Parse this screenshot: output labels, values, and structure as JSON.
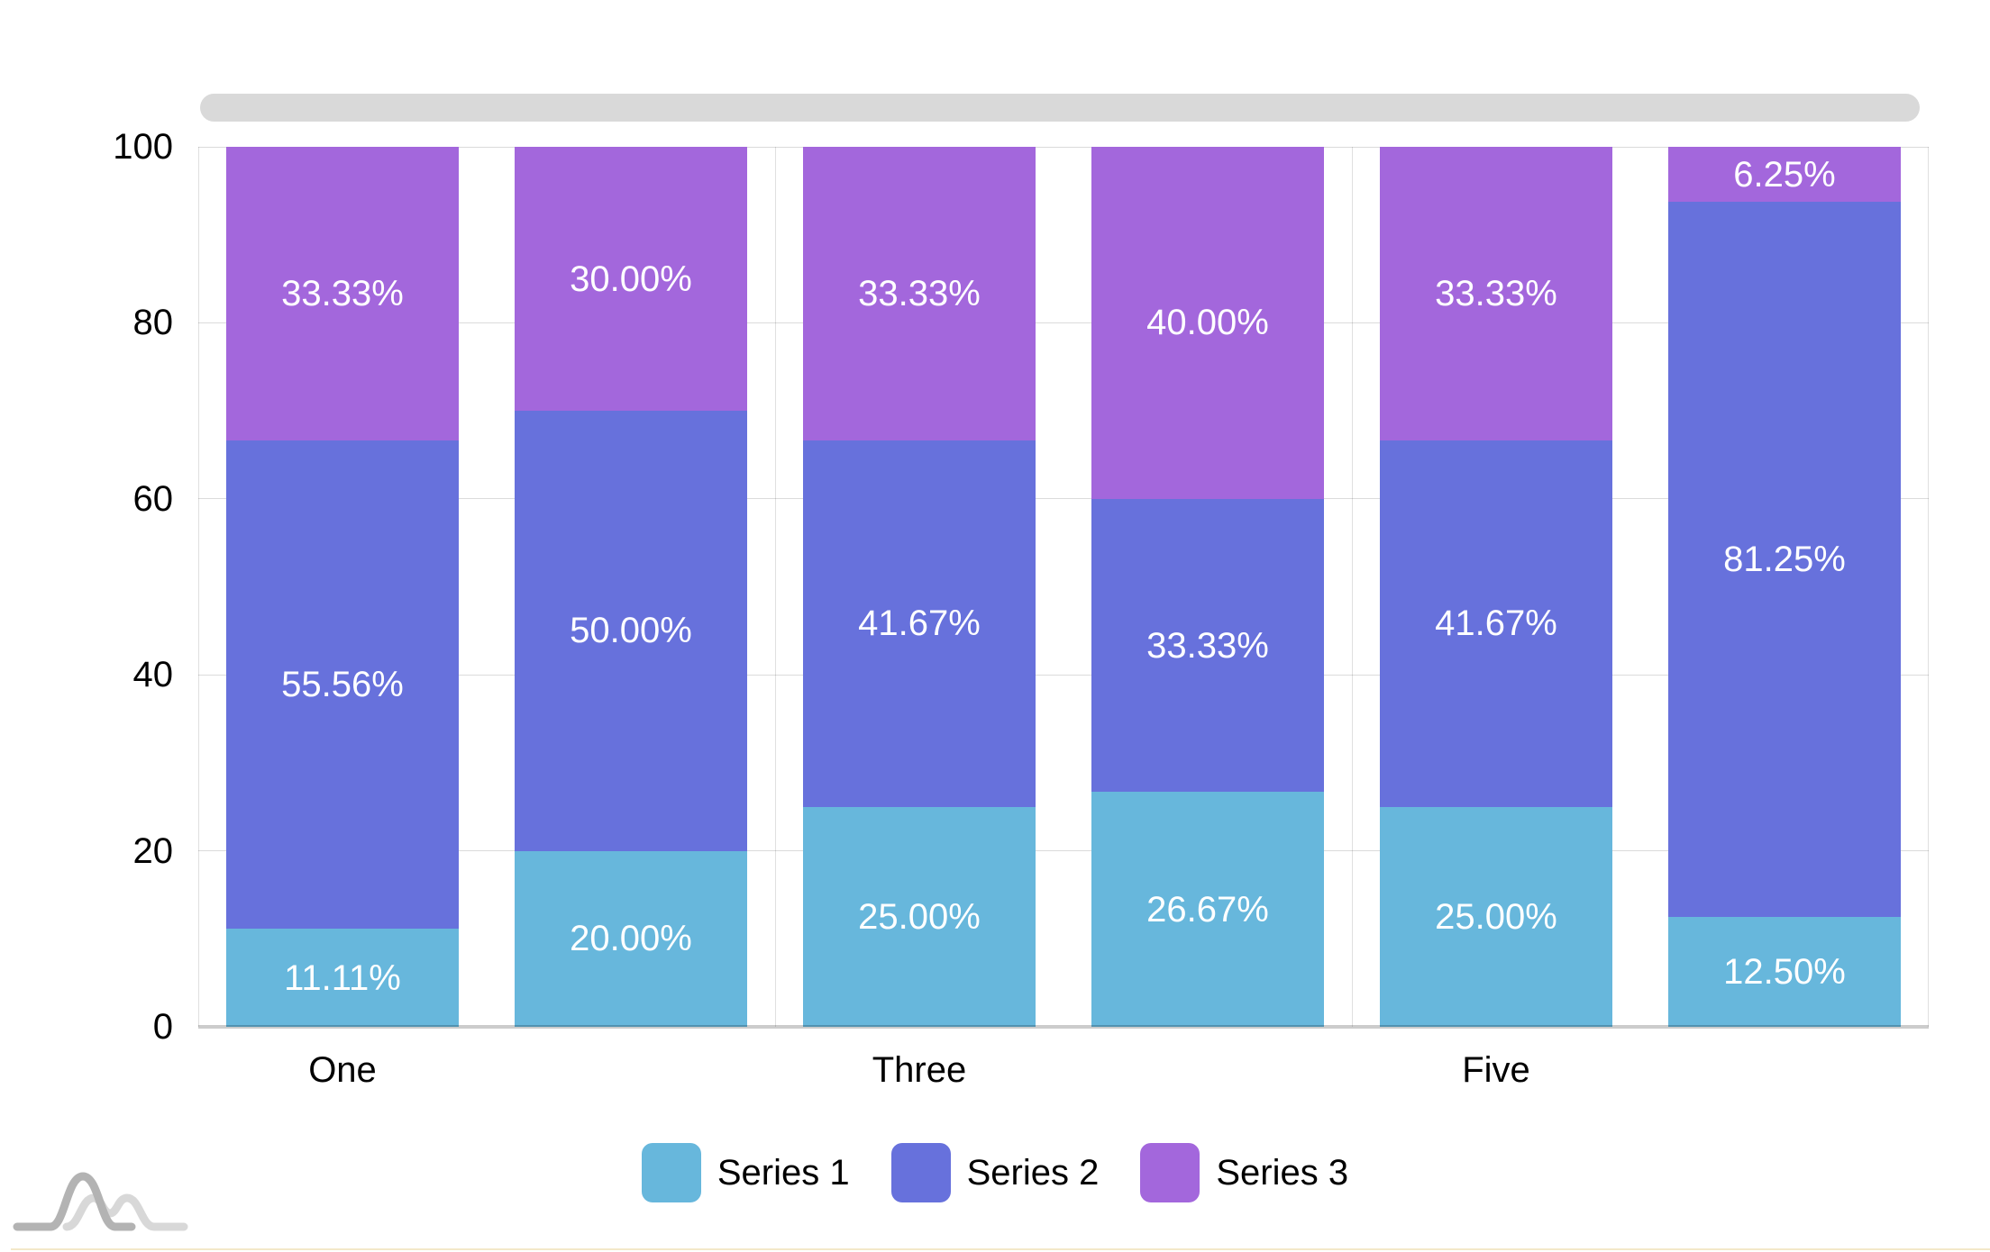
{
  "chart_data": {
    "type": "bar",
    "subtype": "stacked-100-percent-column",
    "title": "",
    "xlabel": "",
    "ylabel": "",
    "grid": true,
    "y_axis": {
      "min": 0,
      "max": 100,
      "ticks": [
        "0",
        "20",
        "40",
        "60",
        "80",
        "100"
      ]
    },
    "x_axis": {
      "visible_tick_labels": [
        {
          "text": "One",
          "bar_index": 0
        },
        {
          "text": "Three",
          "bar_index": 2
        },
        {
          "text": "Five",
          "bar_index": 4
        }
      ]
    },
    "series": [
      {
        "name": "Series 1",
        "color": "#67b7dc",
        "values": [
          11.11,
          20.0,
          25.0,
          26.67,
          25.0,
          12.5
        ],
        "labels": [
          "11.11%",
          "20.00%",
          "25.00%",
          "26.67%",
          "25.00%",
          "12.50%"
        ]
      },
      {
        "name": "Series 2",
        "color": "#6771dc",
        "values": [
          55.56,
          50.0,
          41.67,
          33.33,
          41.67,
          81.25
        ],
        "labels": [
          "55.56%",
          "50.00%",
          "41.67%",
          "33.33%",
          "41.67%",
          "81.25%"
        ]
      },
      {
        "name": "Series 3",
        "color": "#a367dc",
        "values": [
          33.33,
          30.0,
          33.33,
          40.0,
          33.33,
          6.25
        ],
        "labels": [
          "33.33%",
          "30.00%",
          "33.33%",
          "40.00%",
          "33.33%",
          "6.25%"
        ]
      }
    ],
    "legend": {
      "position": "bottom",
      "items": [
        {
          "label": "Series 1",
          "color": "#67b7dc"
        },
        {
          "label": "Series 2",
          "color": "#6771dc"
        },
        {
          "label": "Series 3",
          "color": "#a367dc"
        }
      ]
    }
  },
  "scrollbar": {
    "present": true,
    "color": "#d9d9d9"
  },
  "colors": {
    "background": "#ffffff",
    "grid": "rgba(0,0,0,0.14)",
    "axis_text": "#000000",
    "value_label_text": "#ffffff",
    "bottom_line": "#f3e8c9",
    "logo_dark": "#b3b3b3",
    "logo_light": "#d8d8d8"
  }
}
